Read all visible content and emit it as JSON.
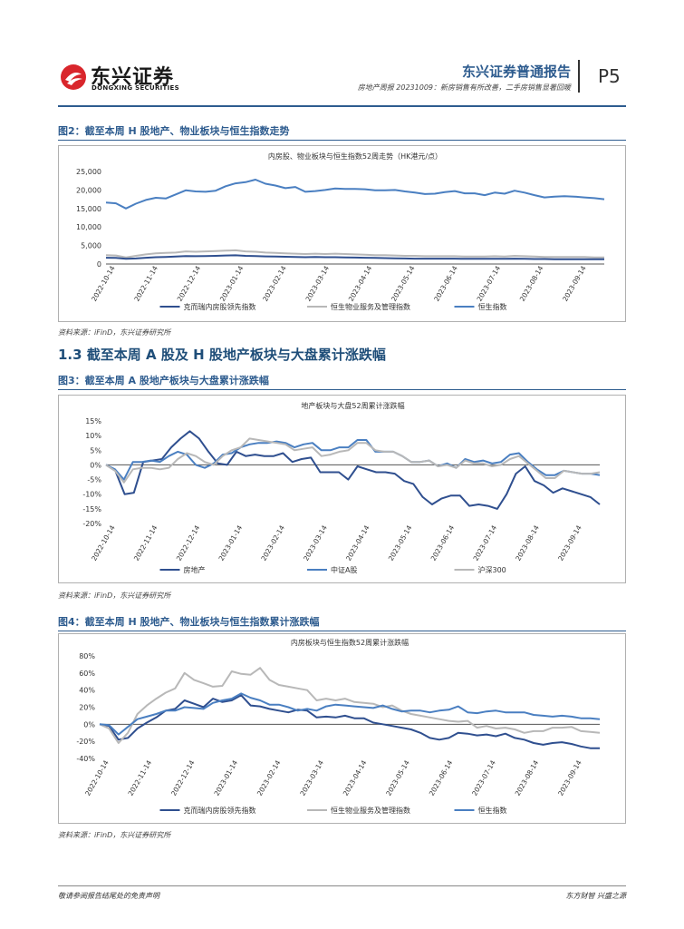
{
  "header": {
    "logo_cn": "东兴证券",
    "logo_en": "DONGXING SECURITIES",
    "report_type": "东兴证券普通报告",
    "report_subtitle": "房地产周报 20231009：新房销售有所改善，二手房销售显著回暖",
    "page": "P5"
  },
  "section": {
    "title": "1.3 截至本周 A 股及 H 股地产板块与大盘累计涨跌幅"
  },
  "figures": [
    {
      "title": "图2：截至本周 H 股地产、物业板块与恒生指数走势",
      "source": "资料来源：iFinD，东兴证券研究所"
    },
    {
      "title": "图3：截至本周 A 股地产板块与大盘累计涨跌幅",
      "source": "资料来源：iFinD，东兴证券研究所"
    },
    {
      "title": "图4：截至本周 H 股地产、物业板块与恒生指数累计涨跌幅",
      "source": "资料来源：iFinD，东兴证券研究所"
    }
  ],
  "footer": {
    "left": "敬请参阅报告结尾处的免责声明",
    "right": "东方财智 兴盛之源"
  },
  "colors": {
    "brand": "#2e5c8f",
    "dark": "#2f4f8f",
    "gray": "#b8b8b8",
    "light": "#4a7fc1",
    "logo_red": "#d9262c"
  },
  "chart_data": [
    {
      "type": "line",
      "title": "内房股、物业板块与恒生指数52周走势（HK港元/点）",
      "x_labels": [
        "2022-10-14",
        "2022-11-14",
        "2022-12-14",
        "2023-01-14",
        "2023-02-14",
        "2023-03-14",
        "2023-04-14",
        "2023-05-14",
        "2023-06-14",
        "2023-07-14",
        "2023-08-14",
        "2023-09-14"
      ],
      "ylim": [
        0,
        25000
      ],
      "yticks": [
        "0",
        "5,000",
        "10,000",
        "15,000",
        "20,000",
        "25,000"
      ],
      "series": [
        {
          "name": "恒生指数",
          "color": "#4a7fc1",
          "values": [
            16600,
            16400,
            15000,
            16300,
            17300,
            17900,
            17700,
            18800,
            19900,
            19600,
            19500,
            19800,
            21000,
            21800,
            22100,
            22800,
            21700,
            21200,
            20500,
            20800,
            19500,
            19700,
            20000,
            20400,
            20300,
            20300,
            20200,
            19900,
            19900,
            20000,
            19600,
            19300,
            18900,
            19000,
            19400,
            19700,
            19100,
            19100,
            18600,
            19300,
            19000,
            19800,
            19300,
            18600,
            18000,
            18200,
            18300,
            18200,
            18000,
            17800,
            17500
          ]
        },
        {
          "name": "恒生物业服务及管理指数",
          "color": "#b8b8b8",
          "values": [
            2400,
            2300,
            1800,
            2200,
            2600,
            2900,
            3000,
            3100,
            3400,
            3300,
            3400,
            3500,
            3600,
            3700,
            3400,
            3300,
            3100,
            3000,
            2900,
            2800,
            2700,
            2800,
            2700,
            2800,
            2700,
            2600,
            2500,
            2400,
            2400,
            2300,
            2200,
            2200,
            2100,
            2100,
            2100,
            2100,
            2000,
            2000,
            2000,
            2100,
            2000,
            2200,
            2100,
            2000,
            1900,
            1900,
            1900,
            1900,
            1900,
            1800,
            1800
          ]
        },
        {
          "name": "克而瑞内房股领先指数",
          "color": "#2f4f8f",
          "values": [
            1700,
            1650,
            1400,
            1500,
            1700,
            1850,
            1900,
            2000,
            2150,
            2100,
            2150,
            2200,
            2300,
            2350,
            2200,
            2150,
            2050,
            2000,
            1950,
            1900,
            1850,
            1900,
            1850,
            1850,
            1800,
            1750,
            1700,
            1650,
            1600,
            1550,
            1500,
            1450,
            1450,
            1450,
            1450,
            1450,
            1400,
            1400,
            1400,
            1400,
            1400,
            1450,
            1400,
            1350,
            1350,
            1300,
            1300,
            1300,
            1300,
            1300,
            1300
          ]
        }
      ],
      "legend": [
        "克而瑞内房股领先指数",
        "恒生物业服务及管理指数",
        "恒生指数"
      ]
    },
    {
      "type": "line",
      "title": "地产板块与大盘52周累计涨跌幅",
      "x_labels": [
        "2022-10-14",
        "2022-11-14",
        "2022-12-14",
        "2023-01-14",
        "2023-02-14",
        "2023-03-14",
        "2023-04-14",
        "2023-05-14",
        "2023-06-14",
        "2023-07-14",
        "2023-08-14",
        "2023-09-14"
      ],
      "ylim": [
        -20,
        15
      ],
      "yticks": [
        "-20%",
        "-15%",
        "-10%",
        "-5%",
        "0%",
        "5%",
        "10%",
        "15%"
      ],
      "series": [
        {
          "name": "房地产",
          "color": "#2f4f8f",
          "values": [
            0,
            -2,
            -10,
            -9.5,
            1,
            1.5,
            2,
            6,
            9,
            11.5,
            9,
            4.5,
            0.5,
            0,
            4.5,
            3,
            3.5,
            3,
            3,
            4,
            1,
            2,
            2.5,
            -2.5,
            -2.5,
            -2.5,
            -5,
            -0.5,
            -1.5,
            -2.5,
            -2.5,
            -3,
            -5.5,
            -6.5,
            -11,
            -13.5,
            -11.5,
            -10.5,
            -10.5,
            -14,
            -13.5,
            -14,
            -15,
            -10,
            -3,
            -0.5,
            -5.5,
            -7,
            -9.5,
            -8,
            -9,
            -10,
            -11,
            -13.5
          ]
        },
        {
          "name": "中证A股",
          "color": "#4a7fc1",
          "values": [
            0,
            -1.5,
            -5,
            1,
            1,
            1.5,
            1,
            3,
            4.5,
            3.5,
            0,
            -1,
            0.5,
            3.5,
            4,
            6,
            7,
            7.5,
            7.5,
            8,
            7.5,
            6,
            7,
            7.5,
            5,
            5,
            6,
            6,
            8.5,
            8.5,
            4.5,
            4.5,
            4.5,
            3,
            1,
            1,
            1.5,
            -0.5,
            0.5,
            -1,
            2,
            1,
            1.5,
            0.5,
            1,
            3.5,
            4,
            1,
            -1.5,
            -3.5,
            -3.5,
            -2,
            -2.5,
            -3,
            -3,
            -3.5
          ]
        },
        {
          "name": "沪深300",
          "color": "#b8b8b8",
          "values": [
            0,
            -2,
            -6,
            -1.5,
            -1,
            -1,
            -1.5,
            -1,
            2,
            4,
            3,
            1,
            0,
            3,
            5,
            6,
            9,
            8.5,
            8,
            7.5,
            7,
            5,
            5.5,
            6,
            3,
            3.5,
            4.5,
            5,
            7.5,
            7.5,
            5,
            4.5,
            4.5,
            3,
            1,
            1,
            1.5,
            -0.5,
            0,
            -1,
            1.5,
            0.5,
            0.5,
            -0.5,
            0,
            2,
            3,
            0.5,
            -2,
            -4.5,
            -4.5,
            -2,
            -2.5,
            -3,
            -3,
            -2.5
          ]
        }
      ],
      "legend": [
        "房地产",
        "中证A股",
        "沪深300"
      ]
    },
    {
      "type": "line",
      "title": "内房板块与恒生指数52周累计涨跌幅",
      "x_labels": [
        "2022-10-14",
        "2022-11-14",
        "2022-12-14",
        "2023-01-14",
        "2023-02-14",
        "2023-03-14",
        "2023-04-14",
        "2023-05-14",
        "2023-06-14",
        "2023-07-14",
        "2023-08-14",
        "2023-09-14"
      ],
      "ylim": [
        -40,
        80
      ],
      "yticks": [
        "-40%",
        "-20%",
        "0%",
        "20%",
        "40%",
        "60%",
        "80%"
      ],
      "series": [
        {
          "name": "克而瑞内房股领先指数",
          "color": "#2f4f8f",
          "values": [
            0,
            -2,
            -18,
            -16,
            -5,
            2,
            8,
            16,
            18,
            28,
            24,
            20,
            30,
            26,
            28,
            34,
            22,
            21,
            18,
            16,
            14,
            17,
            16,
            8,
            9,
            8,
            10,
            7,
            7,
            2,
            0,
            -2,
            -4,
            -6,
            -10,
            -16,
            -18,
            -16,
            -10,
            -11,
            -13,
            -12,
            -14,
            -11,
            -16,
            -18,
            -22,
            -24,
            -22,
            -21,
            -23,
            -26,
            -28,
            -28
          ]
        },
        {
          "name": "恒生物业服务及管理指数",
          "color": "#b8b8b8",
          "values": [
            0,
            -5,
            -22,
            -10,
            12,
            22,
            30,
            37,
            42,
            60,
            52,
            48,
            44,
            45,
            62,
            59,
            58,
            66,
            52,
            46,
            44,
            42,
            40,
            28,
            30,
            28,
            30,
            26,
            25,
            24,
            20,
            22,
            16,
            12,
            10,
            8,
            6,
            4,
            3,
            4,
            -4,
            -2,
            -5,
            -4,
            -6,
            -10,
            -8,
            -8,
            -4,
            -4,
            -3,
            -8,
            -9,
            -10
          ]
        },
        {
          "name": "恒生指数",
          "color": "#4a7fc1",
          "values": [
            0,
            -1,
            -12,
            -3,
            6,
            9,
            12,
            16,
            16,
            20,
            19,
            18,
            25,
            28,
            30,
            36,
            31,
            28,
            23,
            23,
            20,
            16,
            18,
            16,
            21,
            23,
            22,
            21,
            20,
            19,
            22,
            18,
            15,
            16,
            16,
            14,
            16,
            17,
            21,
            14,
            13,
            15,
            16,
            14,
            14,
            14,
            11,
            10,
            9,
            10,
            9,
            7,
            7,
            6
          ]
        }
      ],
      "legend": [
        "克而瑞内房股领先指数",
        "恒生物业服务及管理指数",
        "恒生指数"
      ]
    }
  ]
}
